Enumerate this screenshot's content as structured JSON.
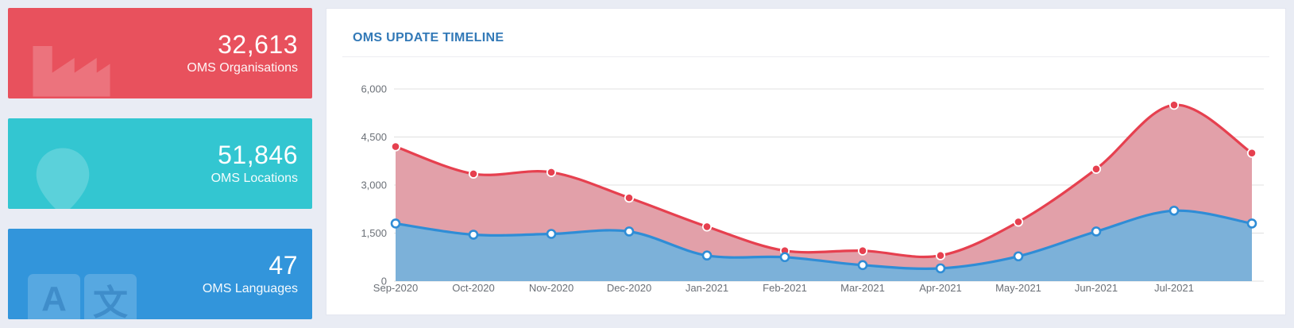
{
  "page": {
    "background": "#e9ecf4",
    "card_background": "#ffffff"
  },
  "stat_cards": [
    {
      "value": "32,613",
      "label": "OMS Organisations",
      "color": "#e8515d",
      "icon": "factory-icon"
    },
    {
      "value": "51,846",
      "label": "OMS Locations",
      "color": "#33c6d1",
      "icon": "location-pin-icon"
    },
    {
      "value": "47",
      "label": "OMS Languages",
      "color": "#3295db",
      "icon": "languages-icon",
      "icon_chars": [
        "A",
        "文"
      ]
    }
  ],
  "chart_panel": {
    "title": "OMS UPDATE TIMELINE",
    "title_color": "#3279b7"
  },
  "chart_data": {
    "type": "area",
    "title": "OMS UPDATE TIMELINE",
    "categories": [
      "Sep-2020",
      "Oct-2020",
      "Nov-2020",
      "Dec-2020",
      "Jan-2021",
      "Feb-2021",
      "Mar-2021",
      "Apr-2021",
      "May-2021",
      "Jun-2021",
      "Jul-2021",
      ""
    ],
    "series": [
      {
        "name": "red-series",
        "line_color": "#e6404f",
        "fill_color": "#e2a0a9",
        "marker": "solid",
        "values": [
          4200,
          3350,
          3400,
          2600,
          1700,
          950,
          950,
          800,
          1850,
          3500,
          5500,
          4000
        ]
      },
      {
        "name": "blue-series",
        "line_color": "#2f8dd6",
        "fill_color": "#7cb1d9",
        "marker": "hollow",
        "values": [
          1800,
          1450,
          1475,
          1550,
          800,
          750,
          500,
          400,
          775,
          1550,
          2200,
          1800
        ]
      }
    ],
    "ylim": [
      0,
      6000
    ],
    "yticks": [
      0,
      1500,
      3000,
      4500,
      6000
    ],
    "ytick_labels": [
      "0",
      "1,500",
      "3,000",
      "4,500",
      "6,000"
    ],
    "grid": true,
    "legend": "none",
    "axis_text_color": "#6b7077",
    "grid_color": "#e0e0e0"
  }
}
